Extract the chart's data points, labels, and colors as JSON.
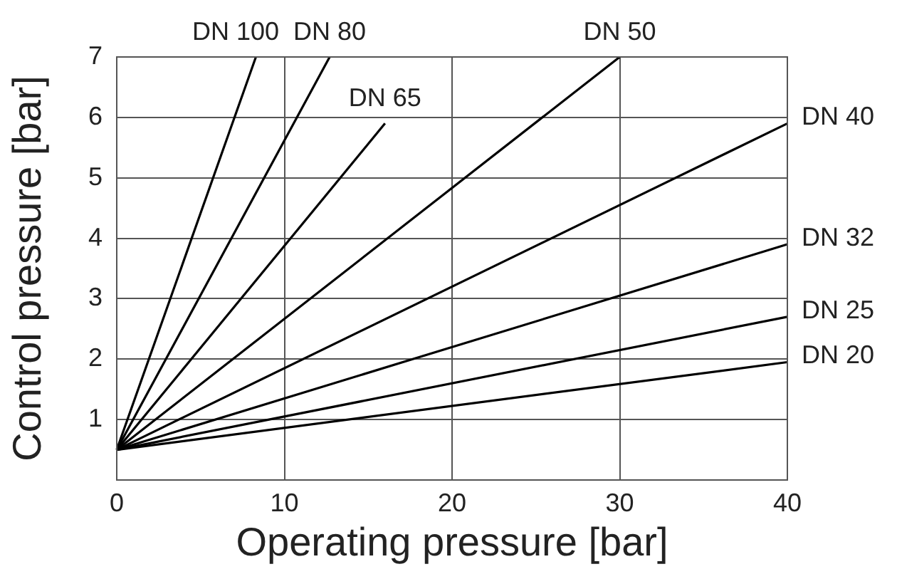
{
  "chart_data": {
    "type": "line",
    "xlabel": "Operating pressure [bar]",
    "ylabel": "Control pressure [bar]",
    "xlim": [
      0,
      40
    ],
    "xticks": [
      0,
      10,
      20,
      30,
      40
    ],
    "ylim": [
      0,
      7
    ],
    "yticks": [
      {
        "value": 0,
        "label": null
      },
      1,
      2,
      3,
      4,
      5,
      6,
      7
    ],
    "grid": true,
    "legend": false,
    "marker": "none",
    "line_style": "solid",
    "series": [
      {
        "name": "DN 100",
        "color": "#000000",
        "x": [
          0,
          8.3
        ],
        "values": [
          0.5,
          7
        ]
      },
      {
        "name": "DN 80",
        "color": "#000000",
        "x": [
          0,
          12.7
        ],
        "values": [
          0.5,
          7
        ]
      },
      {
        "name": "DN 65",
        "color": "#000000",
        "x": [
          0,
          16
        ],
        "values": [
          0.5,
          5.9
        ]
      },
      {
        "name": "DN 50",
        "color": "#000000",
        "x": [
          0,
          30
        ],
        "values": [
          0.5,
          7
        ]
      },
      {
        "name": "DN 40",
        "color": "#000000",
        "x": [
          0,
          40
        ],
        "values": [
          0.5,
          5.9
        ]
      },
      {
        "name": "DN 32",
        "color": "#000000",
        "x": [
          0,
          40
        ],
        "values": [
          0.5,
          3.9
        ]
      },
      {
        "name": "DN 25",
        "color": "#000000",
        "x": [
          0,
          40
        ],
        "values": [
          0.5,
          2.7
        ]
      },
      {
        "name": "DN 20",
        "color": "#000000",
        "x": [
          0,
          40
        ],
        "values": [
          0.5,
          1.95
        ]
      }
    ]
  }
}
